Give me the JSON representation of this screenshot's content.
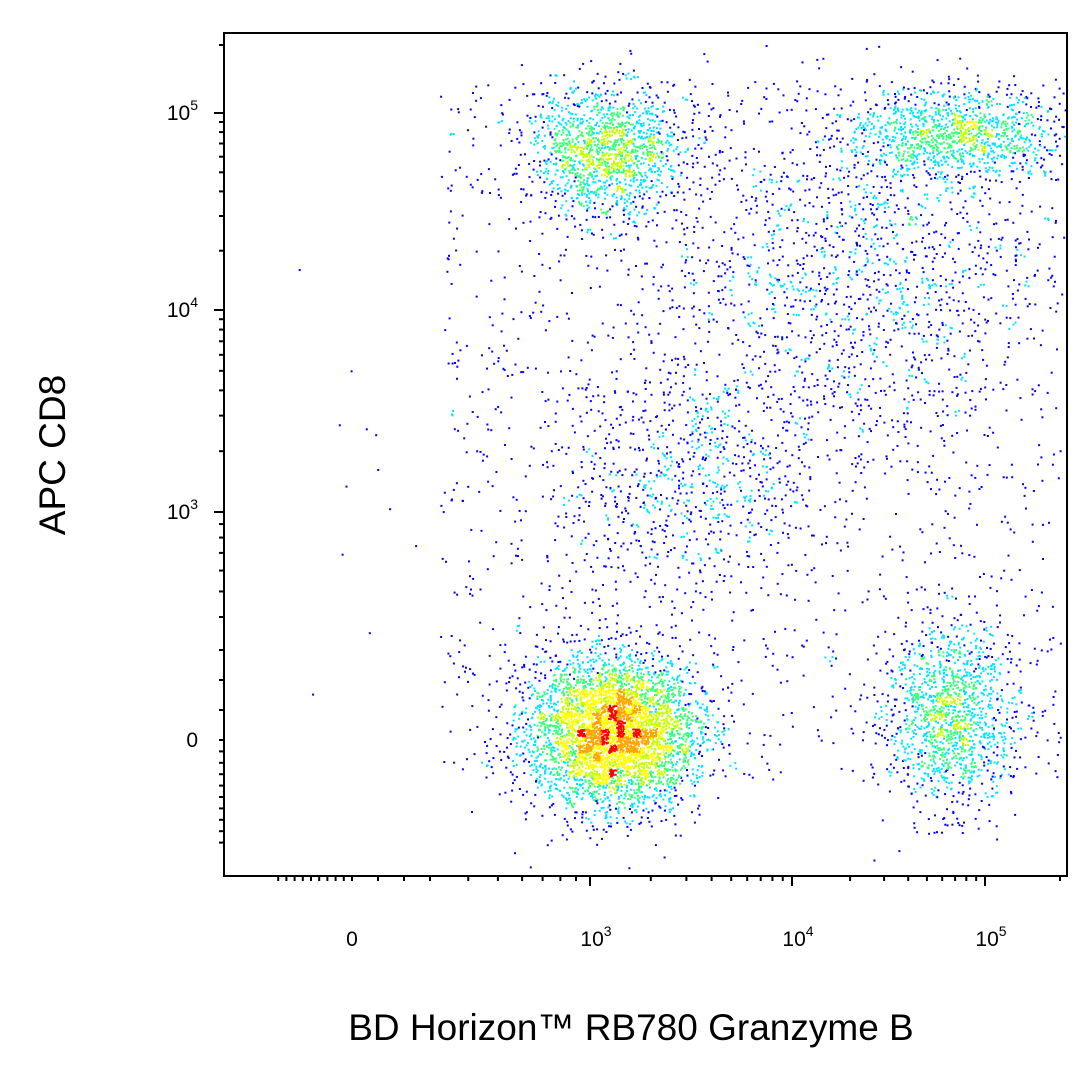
{
  "chart_data": {
    "type": "scatter",
    "subtype": "flow-cytometry-density-dot-plot",
    "xlabel": "BD Horizon™ RB780 Granzyme B",
    "ylabel": "APC CD8",
    "x_scale": "biexponential",
    "y_scale": "biexponential",
    "x_ticks": [
      {
        "value": 0,
        "base": "0",
        "exp": ""
      },
      {
        "value": 1000,
        "base": "10",
        "exp": "3"
      },
      {
        "value": 10000,
        "base": "10",
        "exp": "4"
      },
      {
        "value": 100000,
        "base": "10",
        "exp": "5"
      }
    ],
    "y_ticks": [
      {
        "value": 0,
        "base": "0",
        "exp": ""
      },
      {
        "value": 1000,
        "base": "10",
        "exp": "3"
      },
      {
        "value": 10000,
        "base": "10",
        "exp": "4"
      },
      {
        "value": 100000,
        "base": "10",
        "exp": "5"
      }
    ],
    "grid": false,
    "legend": "none",
    "density_colors": [
      "#0000ff",
      "#00e5ff",
      "#39ff7a",
      "#c8ff00",
      "#ffff00",
      "#ffa500",
      "#ff0000"
    ],
    "populations": [
      {
        "x_center": 1300,
        "y_center": 30,
        "density": "highest"
      },
      {
        "x_center": 1200,
        "y_center": 65000,
        "density": "medium"
      },
      {
        "x_center": 70000,
        "y_center": 80000,
        "density": "medium"
      },
      {
        "x_center": 65000,
        "y_center": 80,
        "density": "medium"
      },
      {
        "x_center": 20000,
        "y_center": 15000,
        "density": "low"
      },
      {
        "x_center": 3000,
        "y_center": 1500,
        "density": "low"
      }
    ]
  }
}
